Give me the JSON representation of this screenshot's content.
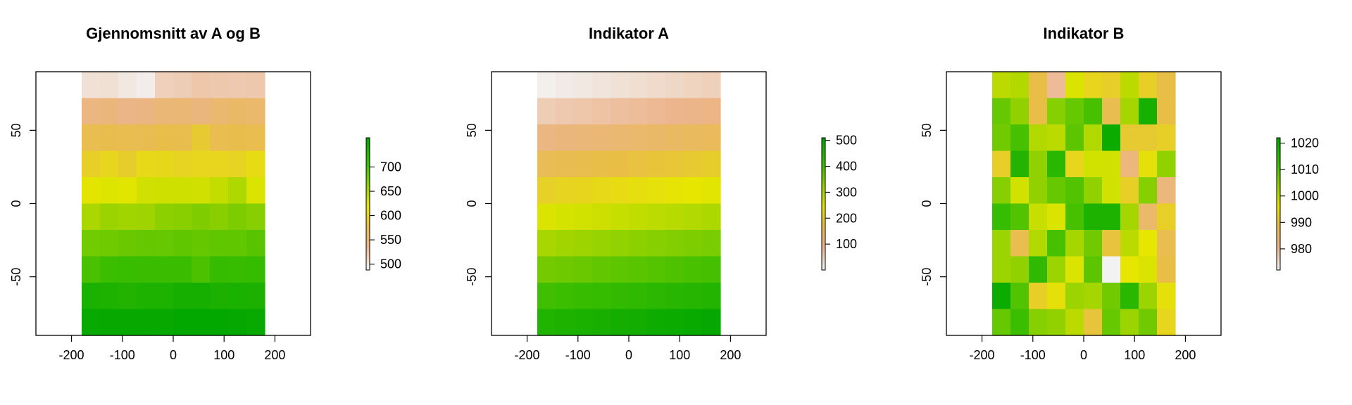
{
  "chart_data": [
    {
      "type": "heatmap",
      "title": "Gjennomsnitt av A og B",
      "xlabel": "",
      "ylabel": "",
      "xlim": [
        -270,
        270
      ],
      "ylim": [
        -90,
        90
      ],
      "x_ticks": [
        -200,
        -100,
        0,
        100,
        200
      ],
      "y_ticks": [
        -50,
        0,
        50
      ],
      "grid": false,
      "extent": {
        "x": [
          -180,
          180
        ],
        "y": [
          -90,
          90
        ]
      },
      "color_range": [
        488,
        760
      ],
      "legend": {
        "placement": "right",
        "ticks": [
          500,
          550,
          600,
          650,
          700
        ]
      },
      "rows_top_to_bottom": [
        [
          502,
          503,
          496,
          492,
          515,
          517,
          522,
          521,
          520,
          521
        ],
        [
          544,
          547,
          540,
          543,
          550,
          552,
          546,
          555,
          560,
          557
        ],
        [
          575,
          576,
          574,
          573,
          578,
          576,
          592,
          575,
          577,
          574
        ],
        [
          597,
          603,
          595,
          606,
          604,
          600,
          603,
          602,
          600,
          608
        ],
        [
          620,
          623,
          621,
          630,
          631,
          631,
          630,
          636,
          647,
          624
        ],
        [
          649,
          657,
          654,
          655,
          664,
          666,
          671,
          666,
          673,
          667
        ],
        [
          678,
          679,
          682,
          685,
          684,
          687,
          685,
          687,
          687,
          691
        ],
        [
          699,
          706,
          708,
          707,
          707,
          707,
          698,
          712,
          710,
          712
        ],
        [
          736,
          733,
          730,
          733,
          733,
          740,
          740,
          735,
          736,
          735
        ],
        [
          753,
          754,
          754,
          754,
          754,
          758,
          758,
          758,
          756,
          753
        ]
      ]
    },
    {
      "type": "heatmap",
      "title": "Indikator A",
      "xlabel": "",
      "ylabel": "",
      "xlim": [
        -270,
        270
      ],
      "ylim": [
        -90,
        90
      ],
      "x_ticks": [
        -200,
        -100,
        0,
        100,
        200
      ],
      "y_ticks": [
        -50,
        0,
        50
      ],
      "grid": false,
      "extent": {
        "x": [
          -180,
          180
        ],
        "y": [
          -90,
          90
        ]
      },
      "color_range": [
        0,
        510
      ],
      "legend": {
        "placement": "right",
        "ticks": [
          100,
          200,
          300,
          400,
          500
        ]
      },
      "rows_top_to_bottom": [
        [
          5,
          10,
          15,
          20,
          25,
          30,
          35,
          40,
          45,
          50
        ],
        [
          55,
          60,
          65,
          70,
          75,
          80,
          85,
          90,
          95,
          100
        ],
        [
          105,
          110,
          115,
          120,
          125,
          130,
          135,
          140,
          145,
          150
        ],
        [
          155,
          160,
          165,
          170,
          175,
          180,
          185,
          190,
          195,
          200
        ],
        [
          205,
          210,
          215,
          220,
          225,
          230,
          235,
          240,
          245,
          250
        ],
        [
          255,
          260,
          265,
          270,
          275,
          280,
          285,
          290,
          295,
          300
        ],
        [
          305,
          310,
          315,
          320,
          325,
          330,
          335,
          340,
          345,
          350
        ],
        [
          355,
          360,
          365,
          370,
          375,
          380,
          385,
          390,
          395,
          400
        ],
        [
          405,
          410,
          415,
          420,
          425,
          430,
          435,
          440,
          445,
          450
        ],
        [
          455,
          460,
          465,
          470,
          475,
          480,
          485,
          490,
          495,
          500
        ]
      ]
    },
    {
      "type": "heatmap",
      "title": "Indikator B",
      "xlabel": "",
      "ylabel": "",
      "xlim": [
        -270,
        270
      ],
      "ylim": [
        -90,
        90
      ],
      "x_ticks": [
        -200,
        -100,
        0,
        100,
        200
      ],
      "y_ticks": [
        -50,
        0,
        50
      ],
      "grid": false,
      "extent": {
        "x": [
          -180,
          180
        ],
        "y": [
          -90,
          90
        ]
      },
      "color_range": [
        972,
        1022
      ],
      "legend": {
        "placement": "right",
        "ticks": [
          980,
          990,
          1000,
          1010,
          1020
        ]
      },
      "rows_top_to_bottom": [
        [
          1000,
          1001,
          989,
          980,
          997,
          993,
          992,
          1000,
          992,
          989
        ],
        [
          1008,
          1004,
          989,
          1005,
          1008,
          1011,
          988,
          1002,
          1018,
          989
        ],
        [
          1007,
          1011,
          1001,
          1000,
          1009,
          1001,
          1020,
          991,
          991,
          992
        ],
        [
          992,
          1016,
          1004,
          1015,
          993,
          998,
          998,
          983,
          995,
          1004
        ],
        [
          1005,
          998,
          1004,
          1008,
          1010,
          1004,
          998,
          992,
          1005,
          983
        ],
        [
          1013,
          1010,
          999,
          997,
          1011,
          1017,
          1017,
          1002,
          985,
          992
        ],
        [
          1003,
          988,
          1001,
          1011,
          1002,
          1007,
          990,
          1000,
          996,
          988
        ],
        [
          1003,
          1004,
          1014,
          1003,
          997,
          1009,
          972,
          996,
          997,
          989
        ],
        [
          1020,
          1010,
          992,
          995,
          1003,
          1002,
          1007,
          1015,
          1003,
          995
        ],
        [
          1008,
          1012,
          1005,
          1004,
          1000,
          990,
          1008,
          1003,
          1007,
          993
        ]
      ]
    }
  ]
}
